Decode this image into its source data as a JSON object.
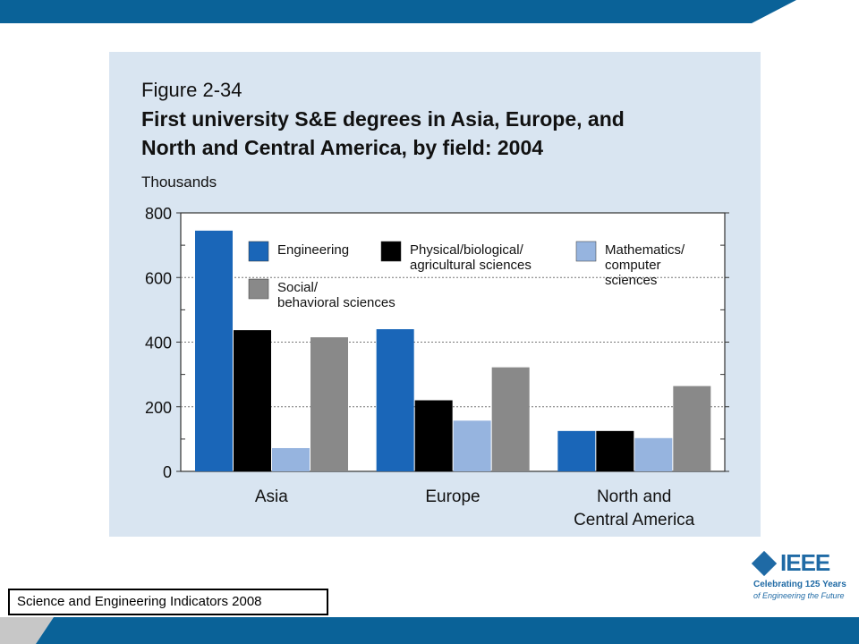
{
  "slide": {
    "source_text": "Science and Engineering Indicators 2008",
    "logo_text": "IEEE",
    "logo_tagline_1": "Celebrating 125 Years",
    "logo_tagline_2": "of Engineering the Future",
    "logo_icon": "ieee-diamond-logo-icon",
    "colors": {
      "top_bar": "#0a6298",
      "bottom_bar": "#0a6298",
      "panel_bg": "#d9e5f1"
    }
  },
  "chart_data": {
    "type": "bar",
    "figure_number": "Figure 2-34",
    "title_line1": "First university S&E degrees in Asia, Europe, and",
    "title_line2": "North and Central America, by field: 2004",
    "ylabel": "Thousands",
    "ylim": [
      0,
      800
    ],
    "yticks": [
      0,
      200,
      400,
      600,
      800
    ],
    "grid": true,
    "legend_position": "top-right",
    "categories": [
      [
        "Asia"
      ],
      [
        "Europe"
      ],
      [
        "North and",
        "Central America"
      ]
    ],
    "series": [
      {
        "name": [
          "Engineering"
        ],
        "color": "#1a66b8",
        "values": [
          745,
          440,
          125
        ]
      },
      {
        "name": [
          "Physical/biological/",
          "agricultural sciences"
        ],
        "color": "#000000",
        "values": [
          437,
          220,
          125
        ]
      },
      {
        "name": [
          "Mathematics/",
          "computer",
          "sciences"
        ],
        "color": "#96b4df",
        "values": [
          72,
          157,
          103
        ]
      },
      {
        "name": [
          "Social/",
          "behavioral sciences"
        ],
        "color": "#898989",
        "values": [
          415,
          322,
          264
        ]
      }
    ]
  }
}
